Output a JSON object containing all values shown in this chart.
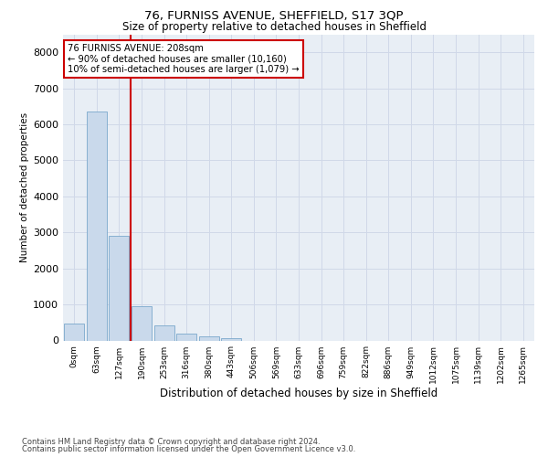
{
  "title1": "76, FURNISS AVENUE, SHEFFIELD, S17 3QP",
  "title2": "Size of property relative to detached houses in Sheffield",
  "xlabel": "Distribution of detached houses by size in Sheffield",
  "ylabel": "Number of detached properties",
  "categories": [
    "0sqm",
    "63sqm",
    "127sqm",
    "190sqm",
    "253sqm",
    "316sqm",
    "380sqm",
    "443sqm",
    "506sqm",
    "569sqm",
    "633sqm",
    "696sqm",
    "759sqm",
    "822sqm",
    "886sqm",
    "949sqm",
    "1012sqm",
    "1075sqm",
    "1139sqm",
    "1202sqm",
    "1265sqm"
  ],
  "values": [
    470,
    6350,
    2900,
    950,
    430,
    200,
    120,
    75,
    0,
    0,
    0,
    0,
    0,
    0,
    0,
    0,
    0,
    0,
    0,
    0,
    0
  ],
  "bar_color": "#c9d9eb",
  "bar_edgecolor": "#7aa8cc",
  "vline_color": "#cc0000",
  "annotation_text": "76 FURNISS AVENUE: 208sqm\n← 90% of detached houses are smaller (10,160)\n10% of semi-detached houses are larger (1,079) →",
  "annotation_box_color": "#cc0000",
  "ylim": [
    0,
    8500
  ],
  "yticks": [
    0,
    1000,
    2000,
    3000,
    4000,
    5000,
    6000,
    7000,
    8000
  ],
  "grid_color": "#d0d8e8",
  "background_color": "#e8eef5",
  "footer1": "Contains HM Land Registry data © Crown copyright and database right 2024.",
  "footer2": "Contains public sector information licensed under the Open Government Licence v3.0."
}
